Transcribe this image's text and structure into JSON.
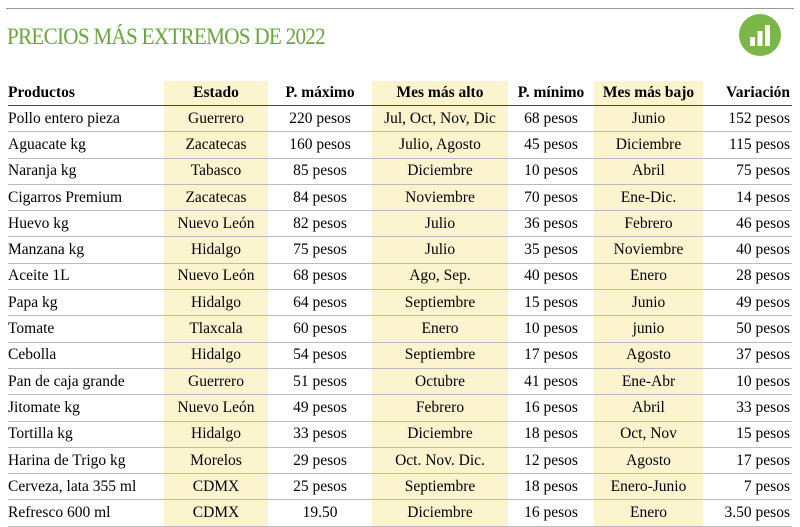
{
  "header": {
    "title": "PRECIOS MÁS EXTREMOS DE 2022"
  },
  "table": {
    "columns": [
      "Productos",
      "Estado",
      "P. máximo",
      "Mes más alto",
      "P. mínimo",
      "Mes más bajo",
      "Variación"
    ],
    "rows": [
      [
        "Pollo entero pieza",
        "Guerrero",
        "220 pesos",
        "Jul, Oct, Nov, Dic",
        "68 pesos",
        "Junio",
        "152 pesos"
      ],
      [
        "Aguacate kg",
        "Zacatecas",
        "160 pesos",
        "Julio, Agosto",
        "45 pesos",
        "Diciembre",
        "115 pesos"
      ],
      [
        "Naranja kg",
        "Tabasco",
        "85 pesos",
        "Diciembre",
        "10 pesos",
        "Abril",
        "75 pesos"
      ],
      [
        "Cigarros Premium",
        "Zacatecas",
        "84 pesos",
        "Noviembre",
        "70 pesos",
        "Ene-Dic.",
        "14 pesos"
      ],
      [
        "Huevo kg",
        "Nuevo León",
        "82 pesos",
        "Julio",
        "36 pesos",
        "Febrero",
        "46 pesos"
      ],
      [
        "Manzana kg",
        "Hidalgo",
        "75 pesos",
        "Julio",
        "35 pesos",
        "Noviembre",
        "40 pesos"
      ],
      [
        "Aceite 1L",
        "Nuevo León",
        "68 pesos",
        "Ago, Sep.",
        "40 pesos",
        "Enero",
        "28 pesos"
      ],
      [
        "Papa kg",
        "Hidalgo",
        "64 pesos",
        "Septiembre",
        "15 pesos",
        "Junio",
        "49 pesos"
      ],
      [
        "Tomate",
        "Tlaxcala",
        "60 pesos",
        "Enero",
        "10 pesos",
        "junio",
        "50 pesos"
      ],
      [
        "Cebolla",
        "Hidalgo",
        "54 pesos",
        "Septiembre",
        "17 pesos",
        "Agosto",
        "37 pesos"
      ],
      [
        "Pan de caja grande",
        "Guerrero",
        "51 pesos",
        "Octubre",
        "41 pesos",
        "Ene-Abr",
        "10 pesos"
      ],
      [
        "Jitomate kg",
        "Nuevo León",
        "49 pesos",
        "Febrero",
        "16 pesos",
        "Abril",
        "33 pesos"
      ],
      [
        "Tortilla kg",
        "Hidalgo",
        "33 pesos",
        "Diciembre",
        "18 pesos",
        "Oct, Nov",
        "15 pesos"
      ],
      [
        "Harina de Trigo kg",
        "Morelos",
        "29 pesos",
        "Oct. Nov. Dic.",
        "12 pesos",
        "Agosto",
        "17 pesos"
      ],
      [
        "Cerveza, lata 355 ml",
        "CDMX",
        "25 pesos",
        "Septiembre",
        "18 pesos",
        "Enero-Junio",
        "7 pesos"
      ],
      [
        "Refresco 600 ml",
        "CDMX",
        "19.50",
        "Diciembre",
        "16 pesos",
        "Enero",
        "3.50 pesos"
      ]
    ]
  }
}
